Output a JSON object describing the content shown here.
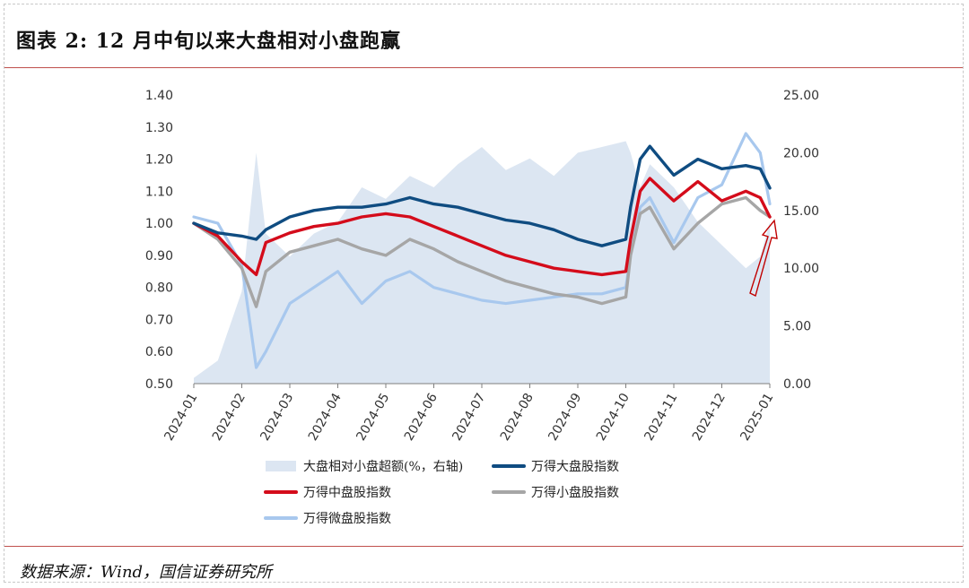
{
  "header": {
    "title": "图表 2:   12 月中旬以来大盘相对小盘跑赢"
  },
  "footer": {
    "source": "数据来源：Wind，国信证券研究所"
  },
  "chart_data": {
    "type": "line",
    "title": "",
    "x_ticks": [
      "2024-01",
      "2024-02",
      "2024-03",
      "2024-04",
      "2024-05",
      "2024-06",
      "2024-07",
      "2024-08",
      "2024-09",
      "2024-10",
      "2024-11",
      "2024-12",
      "2025-01"
    ],
    "ylim_left": [
      0.5,
      1.4
    ],
    "yticks_left": [
      "0.50",
      "0.60",
      "0.70",
      "0.80",
      "0.90",
      "1.00",
      "1.10",
      "1.20",
      "1.30",
      "1.40"
    ],
    "ylim_right": [
      0,
      25
    ],
    "yticks_right": [
      "0.00",
      "5.00",
      "10.00",
      "15.00",
      "20.00",
      "25.00"
    ],
    "legend": [
      {
        "name": "大盘相对小盘超额(%，右轴)",
        "color": "#dce6f2",
        "kind": "area"
      },
      {
        "name": "万得大盘股指数",
        "color": "#0f4c81",
        "kind": "line"
      },
      {
        "name": "万得中盘股指数",
        "color": "#d40c1b",
        "kind": "line"
      },
      {
        "name": "万得小盘股指数",
        "color": "#a6a6a6",
        "kind": "line"
      },
      {
        "name": "万得微盘股指数",
        "color": "#a8c8ee",
        "kind": "line"
      }
    ],
    "x": [
      0,
      0.5,
      1,
      1.3,
      1.5,
      2,
      2.5,
      3,
      3.5,
      4,
      4.5,
      5,
      5.5,
      6,
      6.5,
      7,
      7.5,
      8,
      8.5,
      9,
      9.1,
      9.3,
      9.5,
      10,
      10.5,
      11,
      11.5,
      11.8,
      12
    ],
    "series": [
      {
        "name": "万得大盘股指数",
        "axis": "left",
        "values": [
          1.0,
          0.97,
          0.96,
          0.95,
          0.98,
          1.02,
          1.04,
          1.05,
          1.05,
          1.06,
          1.08,
          1.06,
          1.05,
          1.03,
          1.01,
          1.0,
          0.98,
          0.95,
          0.93,
          0.95,
          1.05,
          1.2,
          1.24,
          1.15,
          1.2,
          1.17,
          1.18,
          1.17,
          1.11
        ]
      },
      {
        "name": "万得中盘股指数",
        "axis": "left",
        "values": [
          1.0,
          0.96,
          0.88,
          0.84,
          0.94,
          0.97,
          0.99,
          1.0,
          1.02,
          1.03,
          1.02,
          0.99,
          0.96,
          0.93,
          0.9,
          0.88,
          0.86,
          0.85,
          0.84,
          0.85,
          0.95,
          1.1,
          1.14,
          1.07,
          1.13,
          1.07,
          1.1,
          1.08,
          1.02
        ]
      },
      {
        "name": "万得小盘股指数",
        "axis": "left",
        "values": [
          1.0,
          0.95,
          0.86,
          0.74,
          0.85,
          0.91,
          0.93,
          0.95,
          0.92,
          0.9,
          0.95,
          0.92,
          0.88,
          0.85,
          0.82,
          0.8,
          0.78,
          0.77,
          0.75,
          0.77,
          0.9,
          1.03,
          1.05,
          0.92,
          1.0,
          1.06,
          1.08,
          1.04,
          1.02
        ]
      },
      {
        "name": "万得微盘股指数",
        "axis": "left",
        "values": [
          1.02,
          1.0,
          0.87,
          0.55,
          0.6,
          0.75,
          0.8,
          0.85,
          0.75,
          0.82,
          0.85,
          0.8,
          0.78,
          0.76,
          0.75,
          0.76,
          0.77,
          0.78,
          0.78,
          0.8,
          0.9,
          1.05,
          1.08,
          0.94,
          1.08,
          1.12,
          1.28,
          1.22,
          1.06
        ]
      },
      {
        "name": "大盘相对小盘超额(%，右轴)",
        "axis": "right",
        "values": [
          0.5,
          2.0,
          8.0,
          20.0,
          13.0,
          11.0,
          13.0,
          14.0,
          17.0,
          16.0,
          18.0,
          17.0,
          19.0,
          20.5,
          18.5,
          19.5,
          18.0,
          20.0,
          20.5,
          21.0,
          20.0,
          17.0,
          19.0,
          17.0,
          14.0,
          12.0,
          10.0,
          11.0,
          14.0
        ]
      }
    ]
  }
}
